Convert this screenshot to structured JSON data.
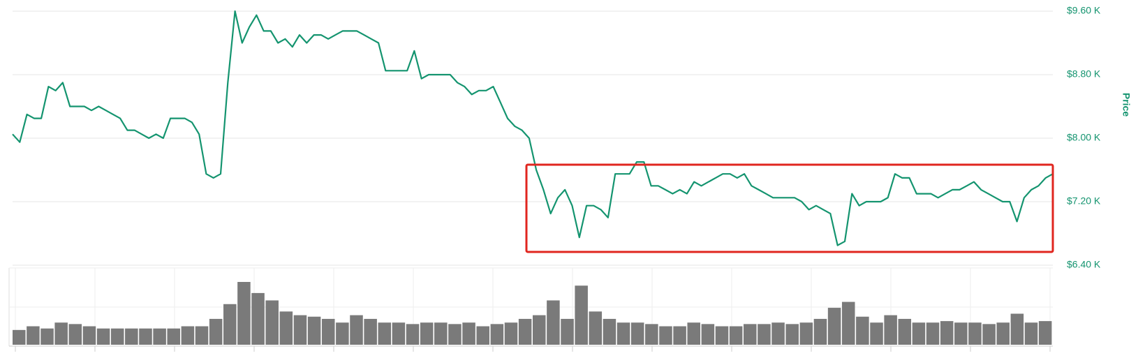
{
  "chart_data": [
    {
      "type": "line",
      "color": "#14946f",
      "axis_label": "Price",
      "ylim": [
        6400,
        9600
      ],
      "yticks": [
        {
          "value": 6400,
          "label": "$6.40 K"
        },
        {
          "value": 7200,
          "label": "$7.20 K"
        },
        {
          "value": 8000,
          "label": "$8.00 K"
        },
        {
          "value": 8800,
          "label": "$8.80 K"
        },
        {
          "value": 9600,
          "label": "$9.60 K"
        }
      ],
      "grid": true,
      "values": [
        8050,
        7950,
        8300,
        8250,
        8250,
        8650,
        8600,
        8700,
        8400,
        8400,
        8400,
        8350,
        8400,
        8350,
        8300,
        8250,
        8100,
        8100,
        8050,
        8000,
        8050,
        8000,
        8250,
        8250,
        8250,
        8200,
        8050,
        7550,
        7500,
        7550,
        8700,
        9600,
        9200,
        9400,
        9550,
        9350,
        9350,
        9200,
        9250,
        9150,
        9300,
        9200,
        9300,
        9300,
        9250,
        9300,
        9350,
        9350,
        9350,
        9300,
        9250,
        9200,
        8850,
        8850,
        8850,
        8850,
        9100,
        8750,
        8800,
        8800,
        8800,
        8800,
        8700,
        8650,
        8550,
        8600,
        8600,
        8650,
        8450,
        8250,
        8150,
        8100,
        8000,
        7600,
        7350,
        7050,
        7250,
        7350,
        7150,
        6750,
        7150,
        7150,
        7100,
        7000,
        7550,
        7550,
        7550,
        7700,
        7700,
        7400,
        7400,
        7350,
        7300,
        7350,
        7300,
        7450,
        7400,
        7450,
        7500,
        7550,
        7550,
        7500,
        7550,
        7400,
        7350,
        7300,
        7250,
        7250,
        7250,
        7250,
        7200,
        7100,
        7150,
        7100,
        7050,
        6650,
        6700,
        7300,
        7150,
        7200,
        7200,
        7200,
        7250,
        7550,
        7500,
        7500,
        7300,
        7300,
        7300,
        7250,
        7300,
        7350,
        7350,
        7400,
        7450,
        7350,
        7300,
        7250,
        7200,
        7200,
        6950,
        7250,
        7350,
        7400,
        7500,
        7550
      ]
    },
    {
      "type": "bar",
      "color": "#7a7a7a",
      "values": [
        20,
        25,
        22,
        30,
        28,
        25,
        22,
        22,
        22,
        22,
        22,
        22,
        25,
        25,
        35,
        55,
        85,
        70,
        60,
        45,
        40,
        38,
        35,
        30,
        40,
        35,
        30,
        30,
        28,
        30,
        30,
        28,
        30,
        25,
        28,
        30,
        35,
        40,
        60,
        35,
        80,
        45,
        35,
        30,
        30,
        28,
        25,
        25,
        30,
        28,
        25,
        25,
        28,
        28,
        30,
        28,
        30,
        35,
        50,
        58,
        38,
        30,
        40,
        35,
        30,
        30,
        32,
        30,
        30,
        28,
        30,
        42,
        30,
        32
      ]
    }
  ]
}
